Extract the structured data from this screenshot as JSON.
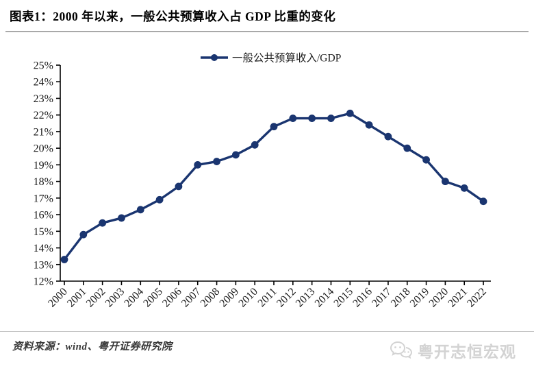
{
  "header": {
    "title": "图表1：2000 年以来，一般公共预算收入占 GDP 比重的变化"
  },
  "chart_data": {
    "type": "line",
    "legend": "一般公共预算收入/GDP",
    "categories": [
      "2000",
      "2001",
      "2002",
      "2003",
      "2004",
      "2005",
      "2006",
      "2007",
      "2008",
      "2009",
      "2010",
      "2011",
      "2012",
      "2013",
      "2014",
      "2015",
      "2016",
      "2017",
      "2018",
      "2019",
      "2020",
      "2021",
      "2022"
    ],
    "values": [
      13.3,
      14.8,
      15.5,
      15.8,
      16.3,
      16.9,
      17.7,
      19.0,
      19.2,
      19.6,
      20.2,
      21.3,
      21.8,
      21.8,
      21.8,
      22.1,
      21.4,
      20.7,
      20.0,
      19.3,
      18.0,
      17.6,
      16.8
    ],
    "unit": "%",
    "ylim": [
      12,
      25
    ],
    "ytick_step": 1,
    "ytick_suffix": "%",
    "grid": false,
    "legend_position": "top-center",
    "series_color": "#1a3570",
    "axis_color": "#000000",
    "tick_label_color": "#1a1a1a"
  },
  "footer": {
    "source": "资料来源：wind、粤开证券研究院",
    "watermark": "粤开志恒宏观",
    "watermark_icon": "wechat-icon"
  }
}
